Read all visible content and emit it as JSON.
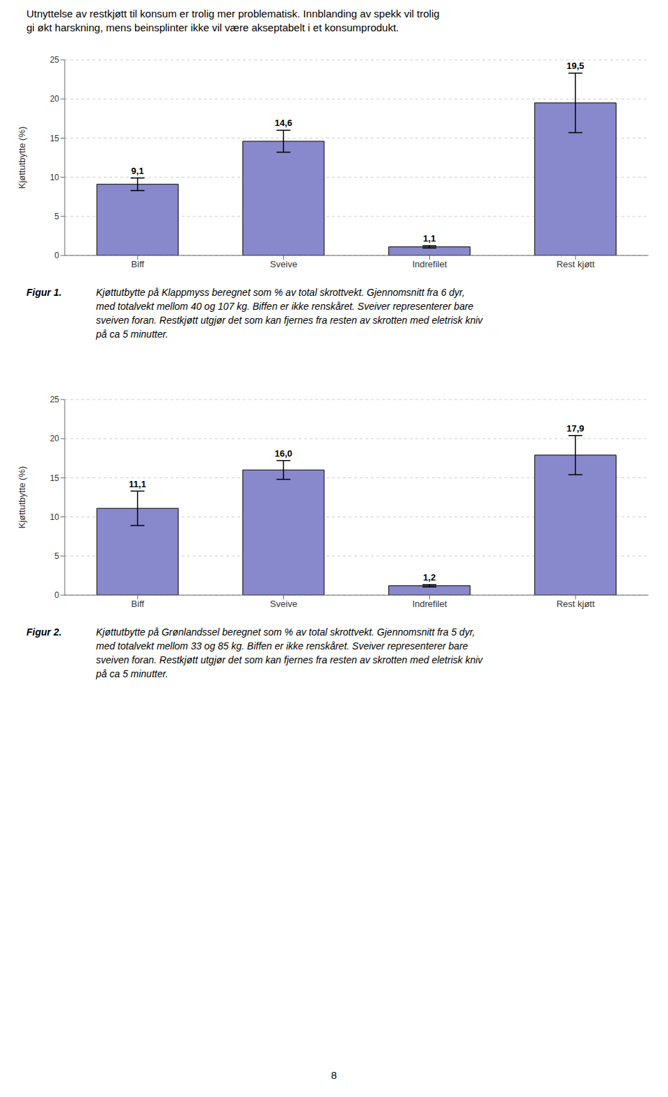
{
  "header": [
    "Utnyttelse av restkjøtt til konsum er trolig mer problematisk. Innblanding av spekk vil trolig",
    "gi økt harskning, mens beinsplinter ikke vil være akseptabelt i et konsumprodukt."
  ],
  "page_number": "8",
  "chart_data": [
    {
      "type": "bar",
      "categories": [
        "Biff",
        "Sveive",
        "Indrefilet",
        "Rest kjøtt"
      ],
      "values": [
        9.1,
        14.6,
        1.1,
        19.5
      ],
      "value_labels": [
        "9,1",
        "14,6",
        "1,1",
        "19,5"
      ],
      "errors": [
        0.8,
        1.4,
        0.15,
        3.8
      ],
      "ylabel": "Kjøttutbytte (%)",
      "ylim": [
        0,
        25
      ],
      "yticks": [
        0,
        5,
        10,
        15,
        20,
        25
      ],
      "grid": true,
      "data_labels": true,
      "color": "#8888cc",
      "figure_label": "Figur 1.",
      "caption": [
        "Kjøttutbytte på Klappmyss beregnet som % av total skrottvekt. Gjennomsnitt fra 6 dyr,",
        "med totalvekt mellom 40 og 107 kg. Biffen er ikke renskåret. Sveiver representerer bare",
        "sveiven foran. Restkjøtt utgjør det som kan fjernes fra resten av skrotten med eletrisk kniv",
        "på ca 5 minutter."
      ]
    },
    {
      "type": "bar",
      "categories": [
        "Biff",
        "Sveive",
        "Indrefilet",
        "Rest kjøtt"
      ],
      "values": [
        11.1,
        16.0,
        1.2,
        17.9
      ],
      "value_labels": [
        "11,1",
        "16,0",
        "1,2",
        "17,9"
      ],
      "errors": [
        2.2,
        1.2,
        0.15,
        2.5
      ],
      "ylabel": "Kjøttutbytte (%)",
      "ylim": [
        0,
        25
      ],
      "yticks": [
        0,
        5,
        10,
        15,
        20,
        25
      ],
      "grid": true,
      "data_labels": true,
      "color": "#8888cc",
      "figure_label": "Figur 2.",
      "caption": [
        "Kjøttutbytte på Grønlandssel beregnet som % av total skrottvekt. Gjennomsnitt fra 5 dyr,",
        "med totalvekt mellom 33 og 85 kg. Biffen er ikke renskåret. Sveiver representerer bare",
        "sveiven foran. Restkjøtt utgjør det som kan fjernes fra resten av skrotten med eletrisk kniv",
        "på ca 5 minutter."
      ]
    }
  ]
}
